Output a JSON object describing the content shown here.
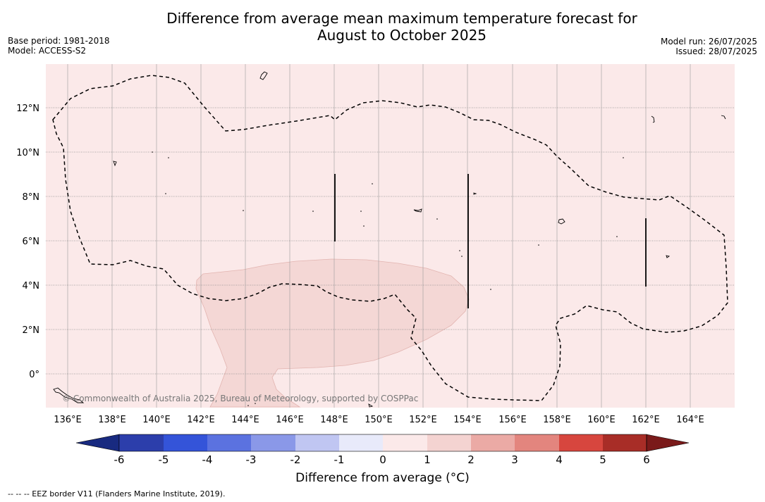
{
  "title": {
    "line1": "Difference from average mean maximum temperature forecast for",
    "line2": "August to October 2025"
  },
  "meta_left": {
    "base_period": "Base period: 1981-2018",
    "model": "Model: ACCESS-S2"
  },
  "meta_right": {
    "model_run": "Model run: 26/07/2025",
    "issued": "Issued: 28/07/2025"
  },
  "map": {
    "lon_ticks": [
      "136°E",
      "138°E",
      "140°E",
      "142°E",
      "144°E",
      "146°E",
      "148°E",
      "150°E",
      "152°E",
      "154°E",
      "156°E",
      "158°E",
      "160°E",
      "162°E",
      "164°E"
    ],
    "lat_ticks": [
      "12°N",
      "10°N",
      "8°N",
      "6°N",
      "4°N",
      "2°N",
      "0°"
    ],
    "background_category": "0 to 1",
    "anomaly_region_category": "1 to 2",
    "credit": "© Commonwealth of Australia 2025, Bureau of Meteorology, supported by COSPPac"
  },
  "colorbar": {
    "ticks": [
      "-6",
      "-5",
      "-4",
      "-3",
      "-2",
      "-1",
      "0",
      "1",
      "2",
      "3",
      "4",
      "5",
      "6"
    ],
    "colors": [
      "#182a80",
      "#2c3eab",
      "#3454d9",
      "#5b72e0",
      "#8a98e8",
      "#c0c6f2",
      "#e8eafa",
      "#fbe9e9",
      "#f4d3d1",
      "#ebaaa5",
      "#e3857e",
      "#d7463e",
      "#a82d27",
      "#7a1a1a"
    ],
    "label": "Difference from average (°C)"
  },
  "footer": {
    "legend_text": "--  --  -- EEZ border V11 (Flanders Marine Institute, 2019)."
  }
}
